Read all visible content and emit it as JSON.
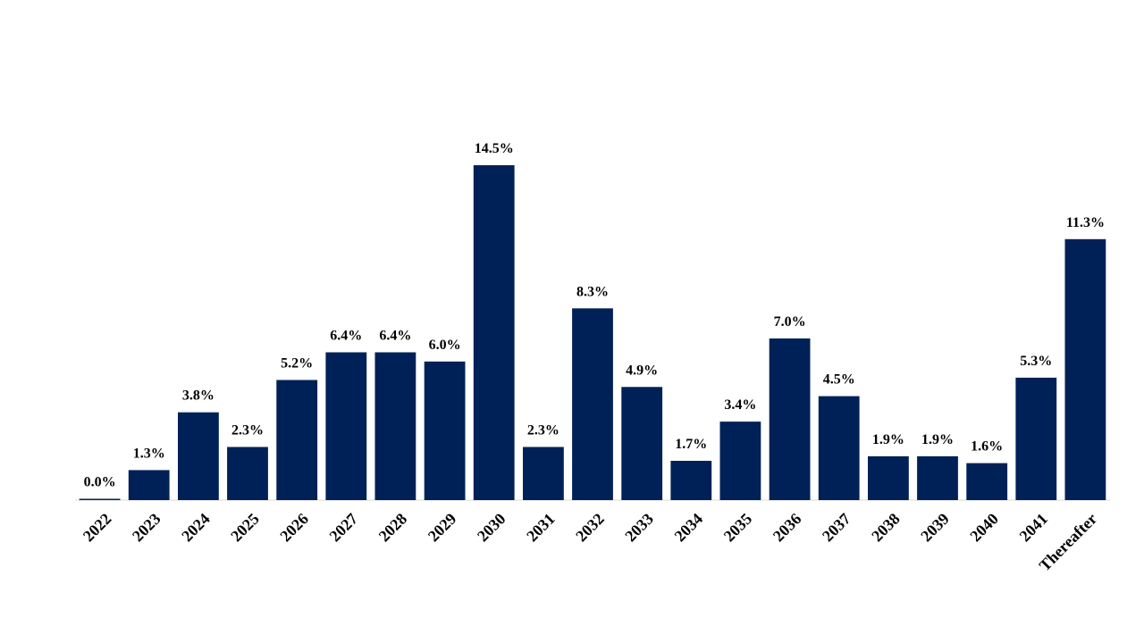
{
  "chart_data": {
    "type": "bar",
    "title": "",
    "xlabel": "",
    "ylabel": "",
    "categories": [
      "2022",
      "2023",
      "2024",
      "2025",
      "2026",
      "2027",
      "2028",
      "2029",
      "2030",
      "2031",
      "2032",
      "2033",
      "2034",
      "2035",
      "2036",
      "2037",
      "2038",
      "2039",
      "2040",
      "2041",
      "Thereafter"
    ],
    "values": [
      0.0,
      1.3,
      3.8,
      2.3,
      5.2,
      6.4,
      6.4,
      6.0,
      14.5,
      2.3,
      8.3,
      4.9,
      1.7,
      3.4,
      7.0,
      4.5,
      1.9,
      1.9,
      1.6,
      5.3,
      11.3
    ],
    "data_labels": [
      "0.0%",
      "1.3%",
      "3.8%",
      "2.3%",
      "5.2%",
      "6.4%",
      "6.4%",
      "6.0%",
      "14.5%",
      "2.3%",
      "8.3%",
      "4.9%",
      "1.7%",
      "3.4%",
      "7.0%",
      "4.5%",
      "1.9%",
      "1.9%",
      "1.6%",
      "5.3%",
      "11.3%"
    ],
    "ylim": [
      0,
      14.5
    ],
    "grid": false,
    "legend": "none",
    "bar_color": "#002157"
  }
}
